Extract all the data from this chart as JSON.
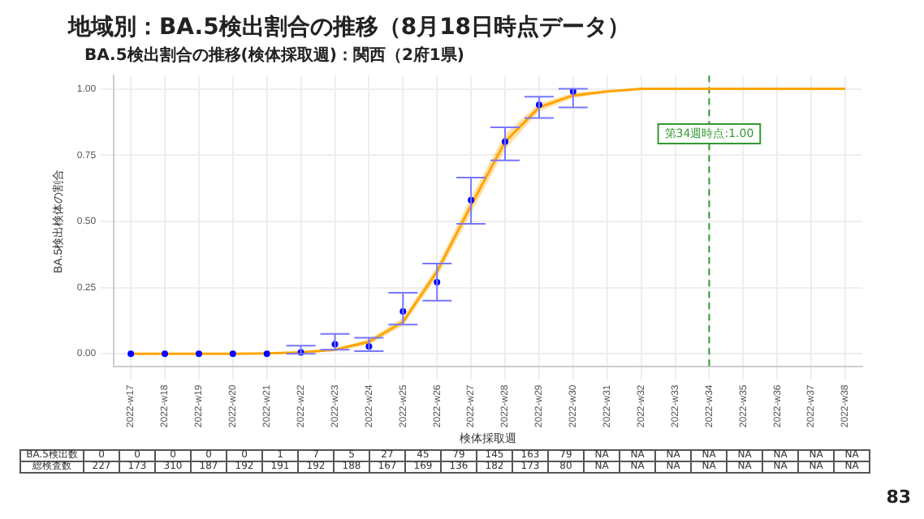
{
  "chart_data": {
    "type": "scatter",
    "title": "地域別：BA.5検出割合の推移（8月18日時点データ）",
    "subtitle": "BA.5検出割合の推移(検体採取週)：関西（2府1県)",
    "xlabel": "検体採取週",
    "ylabel": "BA.5検出検体の割合",
    "categories": [
      "2022-w17",
      "2022-w18",
      "2022-w19",
      "2022-w20",
      "2022-w21",
      "2022-w22",
      "2022-w23",
      "2022-w24",
      "2022-w25",
      "2022-w26",
      "2022-w27",
      "2022-w28",
      "2022-w29",
      "2022-w30",
      "2022-w31",
      "2022-w32",
      "2022-w33",
      "2022-w34",
      "2022-w35",
      "2022-w36",
      "2022-w37",
      "2022-w38"
    ],
    "series": [
      {
        "type": "line",
        "color": "#ffa500",
        "values": [
          0,
          0,
          0,
          0,
          0.001,
          0.005,
          0.015,
          0.045,
          0.12,
          0.31,
          0.56,
          0.8,
          0.93,
          0.975,
          0.99,
          1,
          1,
          1,
          1,
          1,
          1,
          1
        ],
        "lower": [
          0,
          0,
          0,
          0,
          0,
          0.002,
          0.01,
          0.035,
          0.105,
          0.29,
          0.53,
          0.77,
          0.915,
          0.965,
          0.985,
          0.995,
          1,
          1,
          1,
          1,
          1,
          1
        ],
        "upper": [
          0,
          0,
          0,
          0,
          0.002,
          0.008,
          0.02,
          0.055,
          0.135,
          0.33,
          0.59,
          0.83,
          0.945,
          0.985,
          0.995,
          1,
          1,
          1,
          1,
          1,
          1,
          1
        ]
      },
      {
        "type": "scatter",
        "color": "#0000ff",
        "marker": "circle",
        "x": [
          "2022-w17",
          "2022-w18",
          "2022-w19",
          "2022-w20",
          "2022-w21",
          "2022-w22",
          "2022-w23",
          "2022-w24",
          "2022-w25",
          "2022-w26",
          "2022-w27",
          "2022-w28",
          "2022-w29",
          "2022-w30"
        ],
        "values": [
          0,
          0,
          0,
          0,
          0,
          0.005,
          0.036,
          0.027,
          0.16,
          0.27,
          0.58,
          0.8,
          0.94,
          0.99
        ],
        "errors": [
          null,
          null,
          null,
          null,
          null,
          [
            0,
            0.03
          ],
          [
            0.015,
            0.075
          ],
          [
            0.01,
            0.06
          ],
          [
            0.11,
            0.23
          ],
          [
            0.2,
            0.34
          ],
          [
            0.49,
            0.665
          ],
          [
            0.73,
            0.855
          ],
          [
            0.89,
            0.97
          ],
          [
            0.93,
            1
          ]
        ]
      }
    ],
    "ylim": [
      -0.05,
      1.05
    ],
    "yticks": [
      {
        "value": 0,
        "label": "0.00"
      },
      {
        "value": 0.25,
        "label": "0.25"
      },
      {
        "value": 0.5,
        "label": "0.50"
      },
      {
        "value": 0.75,
        "label": "0.75"
      },
      {
        "value": 1,
        "label": "1.00"
      }
    ],
    "grid": true,
    "legend": false,
    "ref_lines": [
      {
        "axis": "x",
        "value": "2022-w34",
        "label": "第34週時点:1.00",
        "color": "#339933",
        "line_style": "dashed"
      }
    ],
    "annotations": [
      "BA.5検出数",
      "0",
      "0",
      "0",
      "0",
      "0",
      "1",
      "7",
      "5",
      "27",
      "45",
      "79",
      "145",
      "163",
      "79",
      "NA",
      "NA",
      "NA",
      "NA",
      "NA",
      "NA",
      "NA",
      "NA",
      "総検査数",
      "227",
      "173",
      "310",
      "187",
      "192",
      "191",
      "192",
      "188",
      "167",
      "169",
      "136",
      "182",
      "173",
      "80",
      "NA",
      "NA",
      "NA",
      "NA",
      "NA",
      "NA",
      "NA",
      "NA",
      "83"
    ]
  }
}
